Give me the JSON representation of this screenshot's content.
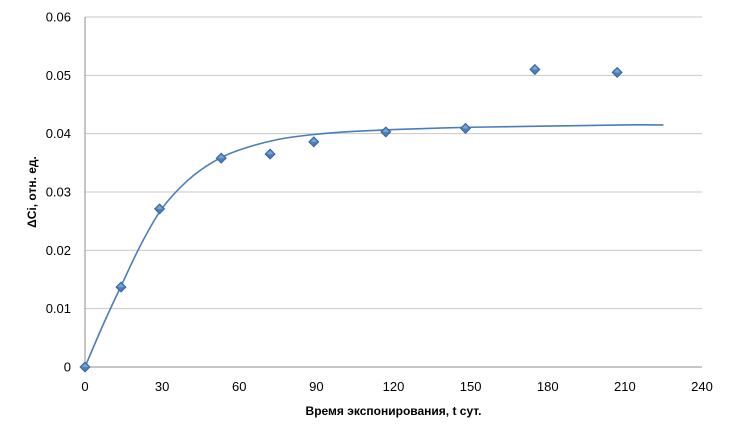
{
  "chart_data": {
    "type": "scatter",
    "title": "",
    "xlabel": "Время экспонирования,  t сут.",
    "ylabel": "ΔCi, отн. ед.",
    "xlim": [
      0,
      240
    ],
    "ylim": [
      0,
      0.06
    ],
    "x_ticks": [
      "0",
      "30",
      "60",
      "90",
      "120",
      "150",
      "180",
      "210",
      "240"
    ],
    "y_ticks": [
      "0",
      "0.01",
      "0.02",
      "0.03",
      "0.04",
      "0.05",
      "0.06"
    ],
    "grid": "horizontal",
    "legend": "none",
    "series": [
      {
        "kind": "scatter",
        "marker": "diamond",
        "color": "#4a7ebb",
        "x": [
          0,
          14,
          29,
          53,
          72,
          89,
          117,
          148,
          175,
          207
        ],
        "y": [
          0.0,
          0.0137,
          0.0271,
          0.0358,
          0.0365,
          0.0386,
          0.0403,
          0.0409,
          0.051,
          0.0505
        ]
      },
      {
        "kind": "line",
        "color": "#4a7ebb",
        "x": [
          0,
          7,
          15,
          22,
          30,
          40,
          50,
          60,
          75,
          90,
          105,
          120,
          150,
          180,
          210,
          225
        ],
        "y": [
          0.0,
          0.0072,
          0.0148,
          0.0212,
          0.0272,
          0.032,
          0.0352,
          0.0372,
          0.039,
          0.0399,
          0.0404,
          0.0407,
          0.0411,
          0.0413,
          0.0415,
          0.0415
        ]
      }
    ]
  }
}
